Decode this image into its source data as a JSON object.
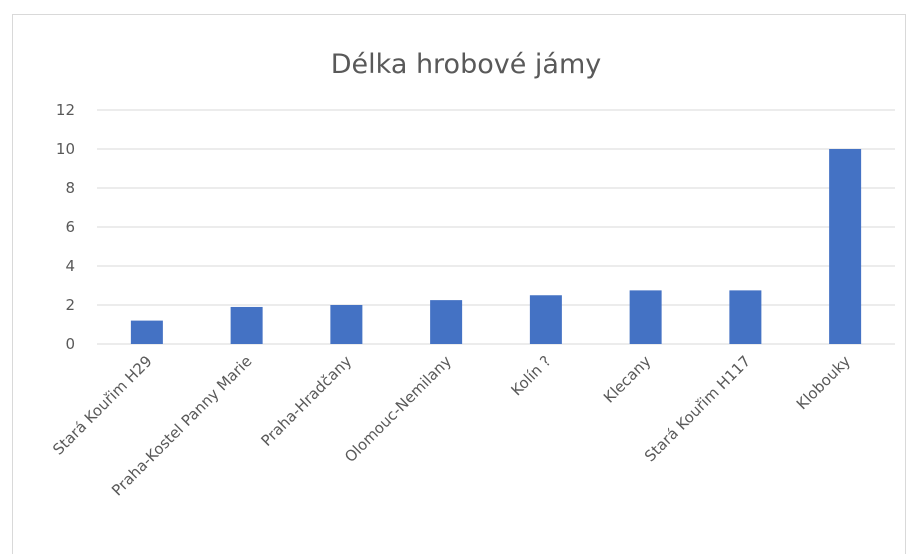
{
  "chart_data": {
    "type": "bar",
    "title": "Délka hrobové jámy",
    "xlabel": "",
    "ylabel": "",
    "categories": [
      "Stará Kouřim H29",
      "Praha-Kostel Panny Marie",
      "Praha-Hradčany",
      "Olomouc-Nemilany",
      "Kolín ?",
      "Klecany",
      "Stará Kouřim H117",
      "Klobouky"
    ],
    "values": [
      1.2,
      1.9,
      2.0,
      2.25,
      2.5,
      2.75,
      2.75,
      10
    ],
    "ylim": [
      0,
      12
    ],
    "yticks": [
      "0",
      "2",
      "4",
      "6",
      "8",
      "10",
      "12"
    ],
    "grid": true,
    "legend": "none",
    "bar_color": "#4472c4"
  }
}
